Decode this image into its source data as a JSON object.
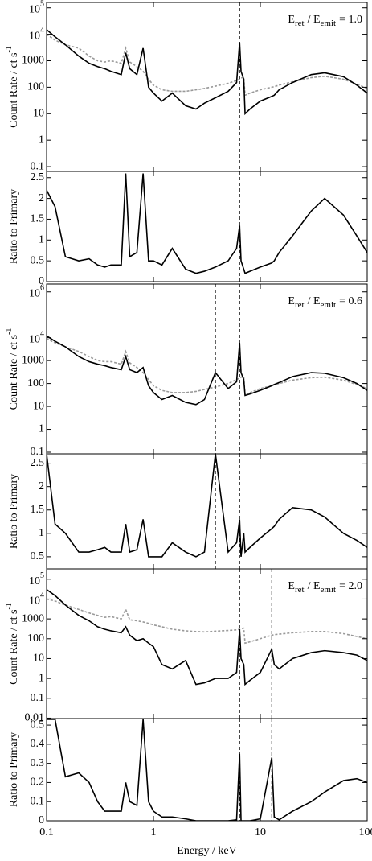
{
  "chart_data": [
    {
      "type": "line",
      "log_y": true,
      "ylabel": [
        "Count Rate / ct s",
        "-1"
      ],
      "annotation": [
        "E",
        "ret",
        "/ E",
        "emit",
        "= 1.0"
      ],
      "x": [
        0.1,
        0.12,
        0.15,
        0.2,
        0.25,
        0.3,
        0.35,
        0.4,
        0.5,
        0.55,
        0.6,
        0.7,
        0.8,
        0.9,
        1,
        1.2,
        1.5,
        2,
        2.5,
        3,
        3.8,
        5,
        6,
        6.4,
        6.6,
        7,
        7.2,
        8,
        10,
        12.8,
        13.5,
        15,
        20,
        30,
        40,
        60,
        80,
        100
      ],
      "xlim": [
        0.1,
        100
      ],
      "ylim": [
        0.066,
        160000
      ],
      "yticks": [
        {
          "value": 100000,
          "label": "10",
          "exp": "5"
        },
        {
          "value": 10000,
          "label": "10",
          "exp": "4"
        },
        1000,
        100,
        10,
        1,
        0.1
      ],
      "vlines": [
        6.4
      ],
      "series": [
        {
          "color": "#999999",
          "dashed": true,
          "values": [
            10000,
            6000,
            4000,
            3000,
            1500,
            1000,
            900,
            1000,
            800,
            3000,
            900,
            600,
            400,
            200,
            120,
            80,
            70,
            70,
            80,
            90,
            110,
            140,
            180,
            200,
            220,
            240,
            50,
            60,
            80,
            100,
            105,
            120,
            160,
            230,
            260,
            200,
            130,
            90
          ]
        },
        {
          "color": "#000000",
          "dashed": false,
          "values": [
            15000,
            8000,
            4000,
            1500,
            800,
            600,
            500,
            400,
            300,
            2000,
            500,
            300,
            3000,
            100,
            60,
            30,
            60,
            20,
            15,
            25,
            40,
            70,
            150,
            5000,
            400,
            200,
            10,
            15,
            30,
            45,
            50,
            80,
            150,
            300,
            350,
            250,
            120,
            60
          ]
        }
      ]
    },
    {
      "type": "line",
      "log_y": false,
      "ylabel": [
        "Ratio to Primary"
      ],
      "x": [
        0.1,
        0.12,
        0.15,
        0.2,
        0.25,
        0.3,
        0.35,
        0.4,
        0.5,
        0.55,
        0.6,
        0.7,
        0.8,
        0.9,
        1,
        1.2,
        1.5,
        2,
        2.5,
        3,
        3.8,
        5,
        6,
        6.4,
        6.6,
        7,
        7.2,
        8,
        10,
        12.8,
        13.5,
        15,
        20,
        30,
        40,
        60,
        80,
        100
      ],
      "xlim": [
        0.1,
        100
      ],
      "ylim": [
        0,
        2.65
      ],
      "yticks": [
        0,
        0.5,
        1,
        1.5,
        2,
        2.5
      ],
      "vlines": [
        6.4
      ],
      "series": [
        {
          "color": "#000000",
          "dashed": false,
          "values": [
            2.2,
            1.8,
            0.6,
            0.5,
            0.55,
            0.4,
            0.35,
            0.4,
            0.4,
            2.6,
            0.6,
            0.7,
            2.6,
            0.5,
            0.5,
            0.4,
            0.8,
            0.3,
            0.2,
            0.25,
            0.35,
            0.5,
            0.8,
            1.35,
            0.5,
            0.3,
            0.2,
            0.25,
            0.35,
            0.45,
            0.5,
            0.7,
            1.1,
            1.7,
            2.0,
            1.6,
            1.1,
            0.7
          ]
        }
      ]
    },
    {
      "type": "line",
      "log_y": true,
      "ylabel": [
        "Count Rate / ct s",
        "-1"
      ],
      "annotation": [
        "E",
        "ret",
        "/ E",
        "emit",
        "= 0.6"
      ],
      "x": [
        0.1,
        0.12,
        0.15,
        0.2,
        0.25,
        0.3,
        0.35,
        0.4,
        0.5,
        0.55,
        0.6,
        0.7,
        0.8,
        0.9,
        1,
        1.2,
        1.5,
        2,
        2.5,
        3,
        3.8,
        5,
        6,
        6.4,
        6.6,
        7,
        7.2,
        8,
        10,
        12.8,
        13.5,
        15,
        20,
        30,
        40,
        60,
        80,
        100
      ],
      "xlim": [
        0.1,
        100
      ],
      "ylim": [
        0.085,
        2200000
      ],
      "yticks": [
        {
          "value": 1000000,
          "label": "10",
          "exp": "6"
        },
        {
          "value": 10000,
          "label": "10",
          "exp": "4"
        },
        1000,
        100,
        10,
        1,
        0.1
      ],
      "vlines": [
        3.8,
        6.4
      ],
      "series": [
        {
          "color": "#999999",
          "dashed": true,
          "values": [
            9000,
            6000,
            4000,
            2500,
            1500,
            1000,
            900,
            900,
            700,
            2500,
            800,
            500,
            300,
            150,
            80,
            50,
            40,
            40,
            45,
            55,
            70,
            100,
            150,
            170,
            190,
            200,
            30,
            40,
            60,
            80,
            90,
            100,
            140,
            180,
            190,
            140,
            90,
            60
          ]
        },
        {
          "color": "#000000",
          "dashed": false,
          "values": [
            12000,
            7000,
            4000,
            1500,
            900,
            700,
            600,
            500,
            400,
            1500,
            400,
            300,
            500,
            80,
            40,
            20,
            30,
            15,
            12,
            20,
            300,
            60,
            120,
            6000,
            300,
            150,
            30,
            35,
            50,
            80,
            90,
            110,
            200,
            300,
            280,
            180,
            100,
            50
          ]
        }
      ]
    },
    {
      "type": "line",
      "log_y": false,
      "ylabel": [
        "Ratio to Primary"
      ],
      "x": [
        0.1,
        0.12,
        0.15,
        0.2,
        0.25,
        0.3,
        0.35,
        0.4,
        0.5,
        0.55,
        0.6,
        0.7,
        0.8,
        0.9,
        1,
        1.2,
        1.5,
        2,
        2.5,
        3,
        3.8,
        5,
        6,
        6.4,
        6.6,
        7,
        7.2,
        8,
        10,
        12.8,
        13.5,
        15,
        20,
        30,
        40,
        60,
        80,
        100
      ],
      "xlim": [
        0.1,
        100
      ],
      "ylim": [
        0.24,
        2.7
      ],
      "yticks": [
        0.5,
        1,
        1.5,
        2,
        2.5
      ],
      "vlines": [
        3.8,
        6.4
      ],
      "series": [
        {
          "color": "#000000",
          "dashed": false,
          "values": [
            2.7,
            1.2,
            1.0,
            0.6,
            0.6,
            0.65,
            0.7,
            0.6,
            0.6,
            1.2,
            0.6,
            0.65,
            1.3,
            0.5,
            0.5,
            0.5,
            0.8,
            0.6,
            0.5,
            0.6,
            2.7,
            0.6,
            0.8,
            1.3,
            0.5,
            1.0,
            0.6,
            0.7,
            0.9,
            1.1,
            1.15,
            1.3,
            1.55,
            1.5,
            1.35,
            1.0,
            0.85,
            0.7
          ]
        }
      ]
    },
    {
      "type": "line",
      "log_y": true,
      "ylabel": [
        "Count Rate / ct s",
        "-1"
      ],
      "annotation": [
        "E",
        "ret",
        "/ E",
        "emit",
        "= 2.0"
      ],
      "x": [
        0.1,
        0.12,
        0.15,
        0.2,
        0.25,
        0.3,
        0.35,
        0.4,
        0.5,
        0.55,
        0.6,
        0.7,
        0.8,
        0.9,
        1,
        1.2,
        1.5,
        2,
        2.5,
        3,
        3.8,
        5,
        6,
        6.4,
        6.6,
        7,
        7.2,
        8,
        10,
        12.8,
        13.5,
        15,
        20,
        30,
        40,
        60,
        80,
        100
      ],
      "xlim": [
        0.1,
        100
      ],
      "ylim": [
        0.0095,
        330000
      ],
      "yticks": [
        {
          "value": 100000,
          "label": "10",
          "exp": "5"
        },
        {
          "value": 10000,
          "label": "10",
          "exp": "4"
        },
        1000,
        100,
        10,
        1,
        0.1,
        0.01
      ],
      "vlines": [
        6.4,
        12.8
      ],
      "series": [
        {
          "color": "#999999",
          "dashed": true,
          "values": [
            10000,
            8000,
            5000,
            3000,
            2000,
            1500,
            1200,
            1300,
            1000,
            3000,
            900,
            800,
            700,
            600,
            500,
            400,
            300,
            250,
            230,
            220,
            240,
            260,
            280,
            300,
            320,
            340,
            60,
            70,
            100,
            150,
            160,
            170,
            200,
            230,
            230,
            180,
            130,
            100
          ]
        },
        {
          "color": "#000000",
          "dashed": false,
          "values": [
            30000,
            15000,
            5000,
            1500,
            800,
            400,
            300,
            250,
            200,
            400,
            150,
            80,
            100,
            60,
            40,
            5,
            3,
            8,
            0.5,
            0.6,
            1,
            1,
            2,
            300,
            10,
            5,
            0.5,
            0.8,
            2,
            30,
            5,
            3,
            10,
            20,
            25,
            20,
            15,
            8
          ]
        }
      ]
    },
    {
      "type": "line",
      "log_y": false,
      "ylabel": [
        "Ratio to Primary"
      ],
      "xlabel": "Energy / keV",
      "x": [
        0.1,
        0.12,
        0.15,
        0.2,
        0.25,
        0.3,
        0.35,
        0.4,
        0.5,
        0.55,
        0.6,
        0.7,
        0.8,
        0.9,
        1,
        1.2,
        1.5,
        2,
        2.5,
        3,
        3.8,
        5,
        6,
        6.4,
        6.6,
        7,
        7.2,
        8,
        10,
        12.8,
        13.5,
        15,
        20,
        30,
        40,
        60,
        80,
        100
      ],
      "xlim": [
        0.1,
        100
      ],
      "xticks": [
        0.1,
        1,
        10,
        100
      ],
      "ylim": [
        0,
        0.534
      ],
      "yticks": [
        0,
        0.1,
        0.2,
        0.3,
        0.4,
        0.5
      ],
      "vlines": [
        6.4,
        12.8
      ],
      "series": [
        {
          "color": "#000000",
          "dashed": false,
          "values": [
            0.53,
            0.53,
            0.23,
            0.25,
            0.2,
            0.1,
            0.05,
            0.05,
            0.05,
            0.2,
            0.1,
            0.08,
            0.53,
            0.1,
            0.05,
            0.02,
            0.02,
            0.01,
            0,
            0,
            0,
            0,
            0.005,
            0.35,
            0,
            0,
            0,
            0,
            0.01,
            0.33,
            0.02,
            0.005,
            0.05,
            0.1,
            0.15,
            0.21,
            0.22,
            0.2
          ]
        }
      ]
    }
  ]
}
